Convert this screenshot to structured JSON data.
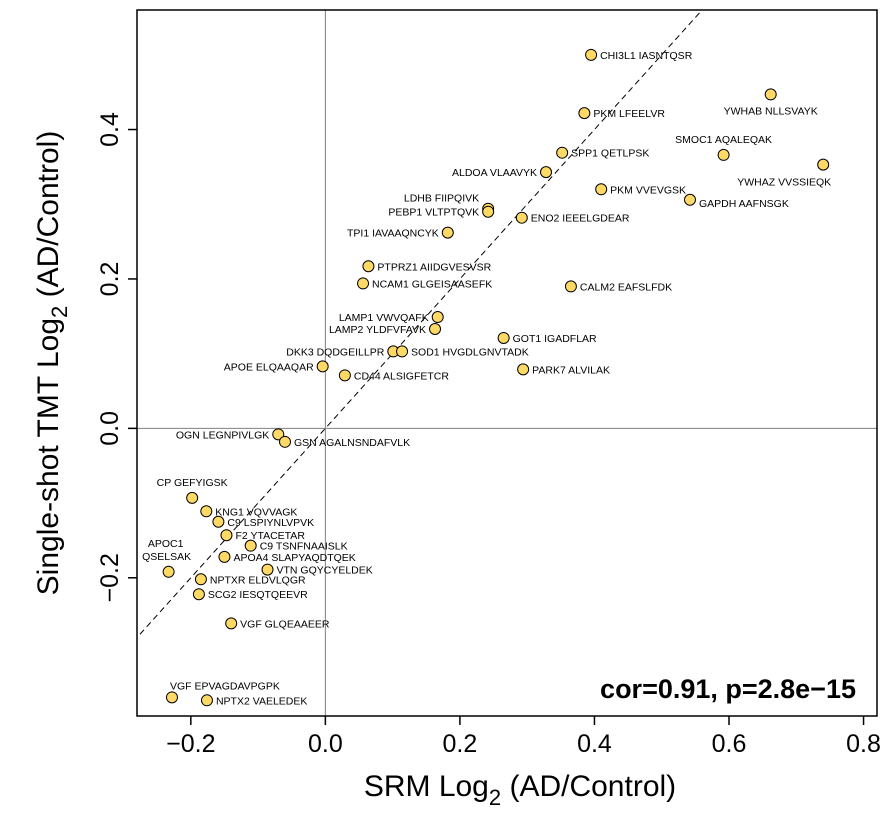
{
  "chart_data": {
    "type": "scatter",
    "xlabel": {
      "pre": "SRM Log",
      "sub": "2",
      "post": " (AD/Control)"
    },
    "ylabel": {
      "pre": "Single-shot TMT Log",
      "sub": "2",
      "post": " (AD/Control)"
    },
    "xlim": [
      -0.28,
      0.82
    ],
    "ylim": [
      -0.385,
      0.56
    ],
    "xticks": [
      -0.2,
      0.0,
      0.2,
      0.4,
      0.6,
      0.8
    ],
    "xtick_labels": [
      "−0.2",
      "0.0",
      "0.2",
      "0.4",
      "0.6",
      "0.8"
    ],
    "yticks": [
      -0.2,
      0.0,
      0.2,
      0.4
    ],
    "ytick_labels": [
      "−0.2",
      "0.0",
      "0.2",
      "0.4"
    ],
    "reference_lines": {
      "vertical_x": 0.0,
      "horizontal_y": 0.0,
      "diagonal": "y = x (dashed)"
    },
    "annotation": "cor=0.91, p=2.8e−15",
    "grid": false,
    "colors": {
      "point_fill": "#FFD966",
      "point_stroke": "#000000",
      "lines": "#808080"
    },
    "points": [
      {
        "label": "CHI3L1 IASNTQSR",
        "x": 0.395,
        "y": 0.5,
        "anchor": "start"
      },
      {
        "label": "PKM LFEELVR",
        "x": 0.385,
        "y": 0.422,
        "anchor": "start"
      },
      {
        "label": "YWHAB NLLSVAYK",
        "x": 0.662,
        "y": 0.447,
        "anchor": "middle-below"
      },
      {
        "label": "SMOC1 AQALEQAK",
        "x": 0.592,
        "y": 0.366,
        "anchor": "middle-above"
      },
      {
        "label": "SPP1 QETLPSK",
        "x": 0.352,
        "y": 0.369,
        "anchor": "start"
      },
      {
        "label": "ALDOA VLAAVYK",
        "x": 0.328,
        "y": 0.343,
        "anchor": "end"
      },
      {
        "label": "YWHAZ VVSSIEQK",
        "x": 0.74,
        "y": 0.353,
        "anchor": "end-below"
      },
      {
        "label": "PKM VVEVGSK",
        "x": 0.41,
        "y": 0.32,
        "anchor": "start"
      },
      {
        "label": "GAPDH AAFNSGK",
        "x": 0.542,
        "y": 0.306,
        "anchor": "start-below"
      },
      {
        "label": "LDHB FIIPQIVK",
        "x": 0.242,
        "y": 0.294,
        "anchor": "end-above"
      },
      {
        "label": "PEBP1 VLTPTQVK",
        "x": 0.242,
        "y": 0.29,
        "anchor": "end"
      },
      {
        "label": "ENO2 IEEELGDEAR",
        "x": 0.292,
        "y": 0.282,
        "anchor": "start"
      },
      {
        "label": "TPI1 IAVAAQNCYK",
        "x": 0.182,
        "y": 0.262,
        "anchor": "end"
      },
      {
        "label": "PTPRZ1 AIIDGVESVSR",
        "x": 0.064,
        "y": 0.217,
        "anchor": "start"
      },
      {
        "label": "NCAM1 GLGEISAASEFK",
        "x": 0.056,
        "y": 0.194,
        "anchor": "start"
      },
      {
        "label": "CALM2 EAFSLFDK",
        "x": 0.365,
        "y": 0.19,
        "anchor": "start"
      },
      {
        "label": "LAMP1 VWVQAFK",
        "x": 0.167,
        "y": 0.149,
        "anchor": "end"
      },
      {
        "label": "LAMP2 YLDFVFAVK",
        "x": 0.163,
        "y": 0.133,
        "anchor": "end"
      },
      {
        "label": "GOT1 IGADFLAR",
        "x": 0.265,
        "y": 0.121,
        "anchor": "start"
      },
      {
        "label": "DKK3 DQDGEILLPR",
        "x": 0.101,
        "y": 0.103,
        "anchor": "end"
      },
      {
        "label": "SOD1 HVGDLGNVTADK",
        "x": 0.114,
        "y": 0.103,
        "anchor": "start"
      },
      {
        "label": "APOE ELQAAQAR",
        "x": -0.004,
        "y": 0.083,
        "anchor": "end"
      },
      {
        "label": "CD44 ALSIGFETCR",
        "x": 0.029,
        "y": 0.071,
        "anchor": "start"
      },
      {
        "label": "PARK7 ALVILAK",
        "x": 0.294,
        "y": 0.079,
        "anchor": "start"
      },
      {
        "label": "OGN LEGNPIVLGK",
        "x": -0.07,
        "y": -0.008,
        "anchor": "end"
      },
      {
        "label": "GSN AGALNSNDAFVLK",
        "x": -0.06,
        "y": -0.018,
        "anchor": "start"
      },
      {
        "label": "CP GEFYIGSK",
        "x": -0.198,
        "y": -0.093,
        "anchor": "middle-above"
      },
      {
        "label": "KNG1 VQVVAGK",
        "x": -0.177,
        "y": -0.111,
        "anchor": "start"
      },
      {
        "label": "C9 LSPIYNLVPVK",
        "x": -0.159,
        "y": -0.125,
        "anchor": "start"
      },
      {
        "label": "F2 YTACETAR",
        "x": -0.147,
        "y": -0.143,
        "anchor": "start"
      },
      {
        "label": "C9 TSNFNAAISLK",
        "x": -0.111,
        "y": -0.157,
        "anchor": "start"
      },
      {
        "label": "APOA4 SLAPYAQDTQEK",
        "x": -0.15,
        "y": -0.172,
        "anchor": "start"
      },
      {
        "label": "VTN GQYCYELDEK",
        "x": -0.086,
        "y": -0.189,
        "anchor": "start"
      },
      {
        "label": "APOC1 QSELSAK",
        "x": -0.233,
        "y": -0.192,
        "anchor": "apoc1"
      },
      {
        "label": "NPTXR ELDVLQGR",
        "x": -0.185,
        "y": -0.202,
        "anchor": "start"
      },
      {
        "label": "SCG2 IESQTQEEVR",
        "x": -0.188,
        "y": -0.222,
        "anchor": "start"
      },
      {
        "label": "VGF GLQEAAEER",
        "x": -0.14,
        "y": -0.261,
        "anchor": "start"
      },
      {
        "label": "VGF EPVAGDAVPGPK",
        "x": -0.228,
        "y": -0.36,
        "anchor": "start-above"
      },
      {
        "label": "NPTX2 VAELEDEK",
        "x": -0.176,
        "y": -0.364,
        "anchor": "start"
      }
    ]
  }
}
